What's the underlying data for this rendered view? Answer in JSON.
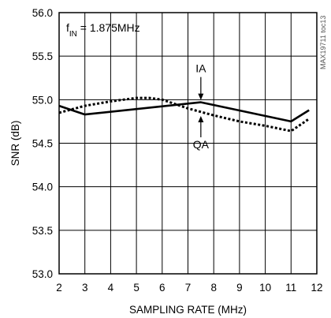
{
  "chart_data": {
    "type": "line",
    "title": "",
    "xlabel": "SAMPLING RATE (MHz)",
    "ylabel": "SNR (dB)",
    "xlim": [
      2,
      12
    ],
    "ylim": [
      53.0,
      56.0
    ],
    "x_ticks": [
      "2",
      "3",
      "4",
      "5",
      "6",
      "7",
      "8",
      "9",
      "10",
      "11",
      "12"
    ],
    "y_ticks": [
      "53.0",
      "53.5",
      "54.0",
      "54.5",
      "55.0",
      "55.5",
      "56.0"
    ],
    "grid": true,
    "annotation_prefix": "f",
    "annotation_subscript": "IN",
    "annotation_value": " = 1.875MHz",
    "watermark": "MAX19711 toc13",
    "series": [
      {
        "name": "IA",
        "style": "solid",
        "color": "#000000",
        "points": [
          [
            2.0,
            54.93
          ],
          [
            3.0,
            54.83
          ],
          [
            7.5,
            54.97
          ],
          [
            11.0,
            54.75
          ],
          [
            11.7,
            54.88
          ]
        ]
      },
      {
        "name": "QA",
        "style": "dotted",
        "color": "#000000",
        "points": [
          [
            2.0,
            54.85
          ],
          [
            3.0,
            54.93
          ],
          [
            4.0,
            54.98
          ],
          [
            5.0,
            55.02
          ],
          [
            5.5,
            55.02
          ],
          [
            6.0,
            55.0
          ],
          [
            7.0,
            54.9
          ],
          [
            8.0,
            54.82
          ],
          [
            9.0,
            54.75
          ],
          [
            10.0,
            54.7
          ],
          [
            11.0,
            54.64
          ],
          [
            11.7,
            54.78
          ]
        ]
      }
    ],
    "series_labels": [
      {
        "text": "IA",
        "arrow_to": [
          7.5,
          54.97
        ],
        "direction": "down"
      },
      {
        "text": "QA",
        "arrow_to": [
          7.5,
          54.84
        ],
        "direction": "up"
      }
    ]
  }
}
